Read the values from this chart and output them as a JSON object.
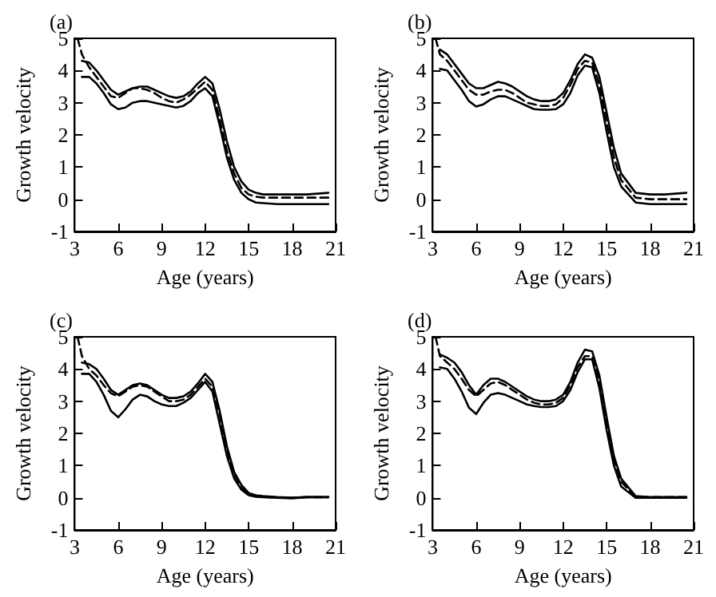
{
  "chart_data": [
    {
      "type": "line",
      "title": "(a)",
      "xlabel": "Age (years)",
      "ylabel": "Growth velocity",
      "xlim": [
        3,
        21
      ],
      "xticks": [
        3,
        6,
        9,
        12,
        15,
        18,
        21
      ],
      "ylim": [
        -1,
        5
      ],
      "yticks": [
        -1,
        0,
        1,
        2,
        3,
        4,
        5
      ],
      "x": [
        3.2,
        3.5,
        4,
        4.5,
        5,
        5.5,
        6,
        6.5,
        7,
        7.5,
        8,
        8.5,
        9,
        9.5,
        10,
        10.5,
        11,
        11.5,
        12,
        12.5,
        13,
        13.5,
        14,
        14.5,
        15,
        15.5,
        16,
        17,
        18,
        19,
        20.5
      ],
      "series": [
        {
          "color": "#000000",
          "line_style": "solid",
          "values": [
            null,
            4.3,
            4.25,
            4.0,
            3.7,
            3.4,
            3.25,
            3.35,
            3.45,
            3.5,
            3.5,
            3.4,
            3.3,
            3.2,
            3.15,
            3.2,
            3.35,
            3.6,
            3.8,
            3.6,
            2.8,
            1.8,
            1.0,
            0.55,
            0.3,
            0.2,
            0.15,
            0.15,
            0.15,
            0.15,
            0.2
          ]
        },
        {
          "color": "#000000",
          "line_style": "dashed",
          "values": [
            5.0,
            4.5,
            4.1,
            3.8,
            3.5,
            3.2,
            3.15,
            3.3,
            3.45,
            3.45,
            3.4,
            3.3,
            3.15,
            3.05,
            3.0,
            3.1,
            3.25,
            3.45,
            3.65,
            3.4,
            2.5,
            1.5,
            0.8,
            0.35,
            0.15,
            0.08,
            0.05,
            0.05,
            0.05,
            0.05,
            0.05
          ]
        },
        {
          "color": "#000000",
          "line_style": "solid",
          "values": [
            null,
            3.8,
            3.8,
            3.6,
            3.3,
            2.95,
            2.8,
            2.85,
            3.0,
            3.05,
            3.05,
            3.0,
            2.95,
            2.9,
            2.85,
            2.9,
            3.05,
            3.3,
            3.45,
            3.2,
            2.3,
            1.3,
            0.6,
            0.2,
            0.0,
            -0.1,
            -0.12,
            -0.15,
            -0.15,
            -0.15,
            -0.15
          ]
        }
      ]
    },
    {
      "type": "line",
      "title": "(b)",
      "xlabel": "Age (years)",
      "ylabel": "Growth velocity",
      "xlim": [
        3,
        21
      ],
      "xticks": [
        3,
        6,
        9,
        12,
        15,
        18,
        21
      ],
      "ylim": [
        -1,
        5
      ],
      "yticks": [
        -1,
        0,
        1,
        2,
        3,
        4,
        5
      ],
      "x": [
        3.2,
        3.5,
        4,
        4.5,
        5,
        5.5,
        6,
        6.5,
        7,
        7.5,
        8,
        8.5,
        9,
        9.5,
        10,
        10.5,
        11,
        11.5,
        12,
        12.5,
        13,
        13.5,
        14,
        14.5,
        15,
        15.5,
        16,
        17,
        18,
        19,
        20.5
      ],
      "series": [
        {
          "color": "#000000",
          "line_style": "solid",
          "values": [
            null,
            4.65,
            4.5,
            4.2,
            3.9,
            3.6,
            3.45,
            3.45,
            3.55,
            3.65,
            3.6,
            3.5,
            3.35,
            3.2,
            3.1,
            3.05,
            3.05,
            3.1,
            3.3,
            3.7,
            4.2,
            4.5,
            4.4,
            3.8,
            2.7,
            1.6,
            0.8,
            0.2,
            0.15,
            0.15,
            0.2
          ]
        },
        {
          "color": "#000000",
          "line_style": "dashed",
          "values": [
            5.0,
            4.5,
            4.3,
            4.0,
            3.7,
            3.4,
            3.25,
            3.25,
            3.35,
            3.4,
            3.4,
            3.3,
            3.15,
            3.0,
            2.95,
            2.9,
            2.9,
            2.95,
            3.15,
            3.55,
            4.05,
            4.3,
            4.25,
            3.55,
            2.4,
            1.3,
            0.6,
            0.05,
            0.0,
            0.0,
            0.0
          ]
        },
        {
          "color": "#000000",
          "line_style": "solid",
          "values": [
            null,
            4.05,
            4.0,
            3.7,
            3.4,
            3.05,
            2.88,
            2.95,
            3.1,
            3.2,
            3.2,
            3.1,
            3.0,
            2.9,
            2.8,
            2.78,
            2.78,
            2.8,
            2.95,
            3.3,
            3.85,
            4.15,
            4.1,
            3.3,
            2.1,
            1.0,
            0.4,
            -0.1,
            -0.15,
            -0.15,
            -0.15
          ]
        }
      ]
    },
    {
      "type": "line",
      "title": "(c)",
      "xlabel": "Age (years)",
      "ylabel": "Growth velocity",
      "xlim": [
        3,
        21
      ],
      "xticks": [
        3,
        6,
        9,
        12,
        15,
        18,
        21
      ],
      "ylim": [
        -1,
        5
      ],
      "yticks": [
        -1,
        0,
        1,
        2,
        3,
        4,
        5
      ],
      "x": [
        3.2,
        3.5,
        4,
        4.5,
        5,
        5.5,
        6,
        6.5,
        7,
        7.5,
        8,
        8.5,
        9,
        9.5,
        10,
        10.5,
        11,
        11.5,
        12,
        12.5,
        13,
        13.5,
        14,
        14.5,
        15,
        15.5,
        16,
        17,
        18,
        19,
        20.5
      ],
      "series": [
        {
          "color": "#000000",
          "line_style": "solid",
          "values": [
            null,
            4.2,
            4.15,
            4.0,
            3.7,
            3.35,
            3.2,
            3.35,
            3.5,
            3.55,
            3.5,
            3.35,
            3.2,
            3.1,
            3.1,
            3.15,
            3.3,
            3.55,
            3.85,
            3.6,
            2.7,
            1.6,
            0.8,
            0.4,
            0.15,
            0.08,
            0.05,
            0.02,
            0.0,
            0.02,
            0.02
          ]
        },
        {
          "color": "#000000",
          "line_style": "dashed",
          "values": [
            5.0,
            4.4,
            4.0,
            3.8,
            3.5,
            3.25,
            3.15,
            3.3,
            3.45,
            3.5,
            3.45,
            3.3,
            3.15,
            3.0,
            3.0,
            3.05,
            3.2,
            3.45,
            3.7,
            3.45,
            2.6,
            1.5,
            0.75,
            0.3,
            0.12,
            0.05,
            0.03,
            0.0,
            0.0,
            0.02,
            0.02
          ]
        },
        {
          "color": "#000000",
          "line_style": "solid",
          "values": [
            null,
            3.85,
            3.85,
            3.6,
            3.2,
            2.7,
            2.5,
            2.75,
            3.05,
            3.2,
            3.15,
            3.0,
            2.9,
            2.85,
            2.85,
            2.95,
            3.1,
            3.35,
            3.6,
            3.3,
            2.3,
            1.3,
            0.6,
            0.25,
            0.08,
            0.03,
            0.02,
            0.0,
            -0.02,
            0.02,
            0.02
          ]
        }
      ]
    },
    {
      "type": "line",
      "title": "(d)",
      "xlabel": "Age (years)",
      "ylabel": "Growth velocity",
      "xlim": [
        3,
        21
      ],
      "xticks": [
        3,
        6,
        9,
        12,
        15,
        18,
        21
      ],
      "ylim": [
        -1,
        5
      ],
      "yticks": [
        -1,
        0,
        1,
        2,
        3,
        4,
        5
      ],
      "x": [
        3.2,
        3.5,
        4,
        4.5,
        5,
        5.5,
        6,
        6.5,
        7,
        7.5,
        8,
        8.5,
        9,
        9.5,
        10,
        10.5,
        11,
        11.5,
        12,
        12.5,
        13,
        13.5,
        14,
        14.5,
        15,
        15.5,
        16,
        17,
        18,
        19,
        20.5
      ],
      "series": [
        {
          "color": "#000000",
          "line_style": "solid",
          "values": [
            null,
            4.45,
            4.35,
            4.2,
            3.9,
            3.5,
            3.2,
            3.5,
            3.7,
            3.7,
            3.6,
            3.45,
            3.3,
            3.15,
            3.05,
            3.0,
            3.0,
            3.05,
            3.2,
            3.6,
            4.2,
            4.6,
            4.55,
            3.8,
            2.5,
            1.3,
            0.6,
            0.05,
            0.02,
            0.02,
            0.02
          ]
        },
        {
          "color": "#000000",
          "line_style": "dashed",
          "values": [
            5.0,
            4.4,
            4.2,
            4.0,
            3.7,
            3.35,
            3.15,
            3.35,
            3.55,
            3.6,
            3.5,
            3.35,
            3.2,
            3.05,
            2.95,
            2.9,
            2.9,
            2.95,
            3.1,
            3.5,
            4.05,
            4.4,
            4.4,
            3.6,
            2.3,
            1.15,
            0.5,
            0.02,
            0.02,
            0.02,
            0.02
          ]
        },
        {
          "color": "#000000",
          "line_style": "solid",
          "values": [
            null,
            4.05,
            4.0,
            3.7,
            3.3,
            2.8,
            2.6,
            2.95,
            3.2,
            3.25,
            3.2,
            3.1,
            3.0,
            2.9,
            2.85,
            2.82,
            2.82,
            2.85,
            3.0,
            3.35,
            3.9,
            4.3,
            4.3,
            3.4,
            2.1,
            1.0,
            0.35,
            0.0,
            0.0,
            0.0,
            0.0
          ]
        }
      ]
    }
  ]
}
